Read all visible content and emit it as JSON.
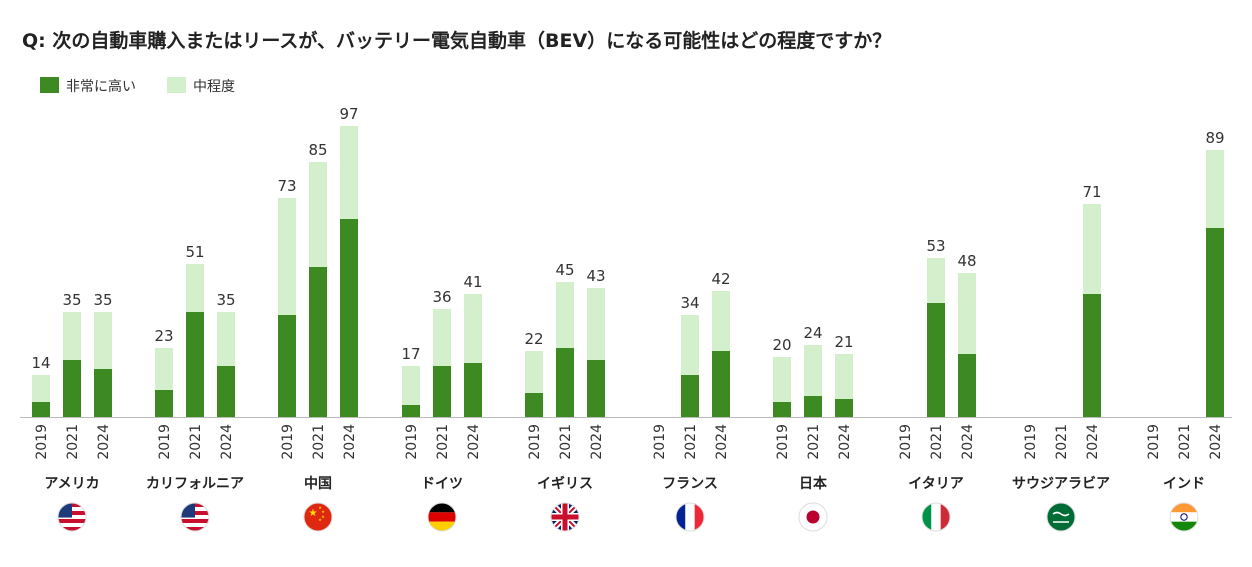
{
  "title": "Q: 次の自動車購入またはリースが、バッテリー電気自動車（BEV）になる可能性はどの程度ですか？",
  "colors": {
    "high": "#3e8a22",
    "moderate": "#d4efcc",
    "axis": "#bbbbbb",
    "text": "#333333"
  },
  "chart_data": {
    "type": "bar",
    "stacked": true,
    "legend_position": "top-left",
    "ylim": [
      0,
      100
    ],
    "grid": false,
    "series": [
      {
        "name": "非常に高い",
        "color": "#3e8a22"
      },
      {
        "name": "中程度",
        "color": "#d4efcc"
      }
    ],
    "groups": [
      {
        "label": "アメリカ",
        "flag": "us-flag",
        "bars": [
          {
            "year": "2019",
            "high": 5,
            "moderate": 9,
            "total": 14
          },
          {
            "year": "2021",
            "high": 19,
            "moderate": 16,
            "total": 35
          },
          {
            "year": "2024",
            "high": 16,
            "moderate": 19,
            "total": 35
          }
        ]
      },
      {
        "label": "カリフォルニア",
        "flag": "us-flag",
        "bars": [
          {
            "year": "2019",
            "high": 9,
            "moderate": 14,
            "total": 23
          },
          {
            "year": "2021",
            "high": 35,
            "moderate": 16,
            "total": 51
          },
          {
            "year": "2024",
            "high": 17,
            "moderate": 18,
            "total": 35
          }
        ]
      },
      {
        "label": "中国",
        "flag": "china-flag",
        "bars": [
          {
            "year": "2019",
            "high": 34,
            "moderate": 39,
            "total": 73
          },
          {
            "year": "2021",
            "high": 50,
            "moderate": 35,
            "total": 85
          },
          {
            "year": "2024",
            "high": 66,
            "moderate": 31,
            "total": 97
          }
        ]
      },
      {
        "label": "ドイツ",
        "flag": "germany-flag",
        "bars": [
          {
            "year": "2019",
            "high": 4,
            "moderate": 13,
            "total": 17
          },
          {
            "year": "2021",
            "high": 17,
            "moderate": 19,
            "total": 36
          },
          {
            "year": "2024",
            "high": 18,
            "moderate": 23,
            "total": 41
          }
        ]
      },
      {
        "label": "イギリス",
        "flag": "uk-flag",
        "bars": [
          {
            "year": "2019",
            "high": 8,
            "moderate": 14,
            "total": 22
          },
          {
            "year": "2021",
            "high": 23,
            "moderate": 22,
            "total": 45
          },
          {
            "year": "2024",
            "high": 19,
            "moderate": 24,
            "total": 43
          }
        ]
      },
      {
        "label": "フランス",
        "flag": "france-flag",
        "bars": [
          {
            "year": "2019",
            "high": null,
            "moderate": null,
            "total": null
          },
          {
            "year": "2021",
            "high": 14,
            "moderate": 20,
            "total": 34
          },
          {
            "year": "2024",
            "high": 22,
            "moderate": 20,
            "total": 42
          }
        ]
      },
      {
        "label": "日本",
        "flag": "japan-flag",
        "bars": [
          {
            "year": "2019",
            "high": 5,
            "moderate": 15,
            "total": 20
          },
          {
            "year": "2021",
            "high": 7,
            "moderate": 17,
            "total": 24
          },
          {
            "year": "2024",
            "high": 6,
            "moderate": 15,
            "total": 21
          }
        ]
      },
      {
        "label": "イタリア",
        "flag": "italy-flag",
        "bars": [
          {
            "year": "2019",
            "high": null,
            "moderate": null,
            "total": null
          },
          {
            "year": "2021",
            "high": 38,
            "moderate": 15,
            "total": 53
          },
          {
            "year": "2024",
            "high": 21,
            "moderate": 27,
            "total": 48
          }
        ]
      },
      {
        "label": "サウジアラビア",
        "flag": "saudi-flag",
        "bars": [
          {
            "year": "2019",
            "high": null,
            "moderate": null,
            "total": null
          },
          {
            "year": "2021",
            "high": null,
            "moderate": null,
            "total": null
          },
          {
            "year": "2024",
            "high": 41,
            "moderate": 30,
            "total": 71
          }
        ]
      },
      {
        "label": "インド",
        "flag": "india-flag",
        "bars": [
          {
            "year": "2019",
            "high": null,
            "moderate": null,
            "total": null
          },
          {
            "year": "2021",
            "high": null,
            "moderate": null,
            "total": null
          },
          {
            "year": "2024",
            "high": 63,
            "moderate": 26,
            "total": 89
          }
        ]
      }
    ]
  }
}
